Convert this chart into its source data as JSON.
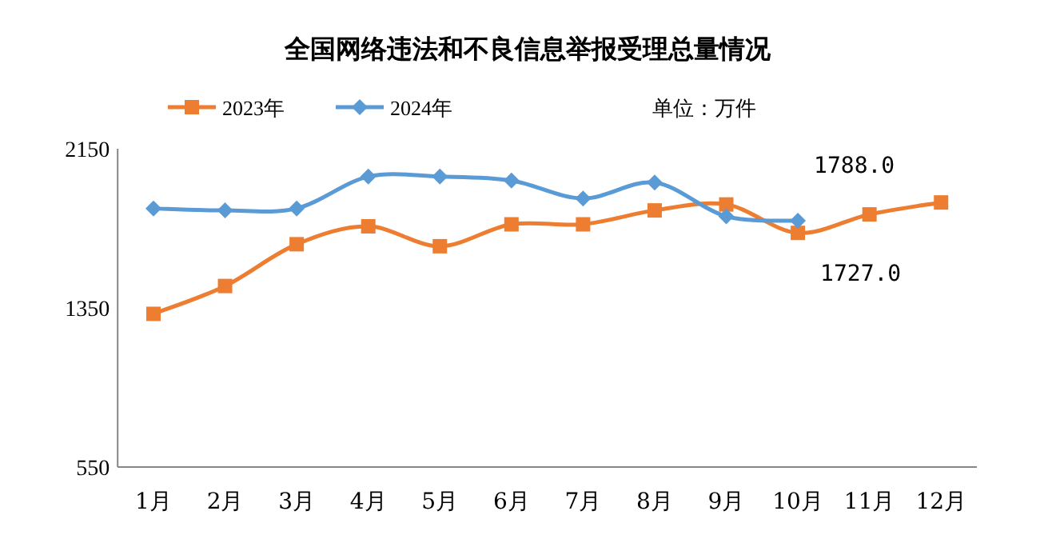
{
  "chart_data": {
    "type": "line",
    "title": "全国网络违法和不良信息举报受理总量情况",
    "annotations": [
      "单位：万件"
    ],
    "categories": [
      "1月",
      "2月",
      "3月",
      "4月",
      "5月",
      "6月",
      "7月",
      "8月",
      "9月",
      "10月",
      "11月",
      "12月"
    ],
    "series": [
      {
        "name": "2023年",
        "color": "#ed7d31",
        "marker": "square",
        "values": [
          1320,
          1460,
          1670,
          1760,
          1660,
          1770,
          1770,
          1840,
          1870,
          1727,
          1820,
          1880
        ],
        "value_labels": [
          null,
          null,
          null,
          null,
          null,
          null,
          null,
          null,
          null,
          "1727.0",
          null,
          null
        ]
      },
      {
        "name": "2024年",
        "color": "#5b9bd5",
        "marker": "diamond",
        "values": [
          1850,
          1840,
          1850,
          2010,
          2010,
          1990,
          1900,
          1980,
          1810,
          1788,
          null,
          null
        ],
        "value_labels": [
          null,
          null,
          null,
          null,
          null,
          null,
          null,
          null,
          null,
          "1788.0",
          null,
          null
        ]
      }
    ],
    "ylim": [
      550,
      2150
    ],
    "yticks": [
      550,
      1350,
      2150
    ],
    "legend": "top left",
    "grid": false,
    "line_style": "solid"
  }
}
